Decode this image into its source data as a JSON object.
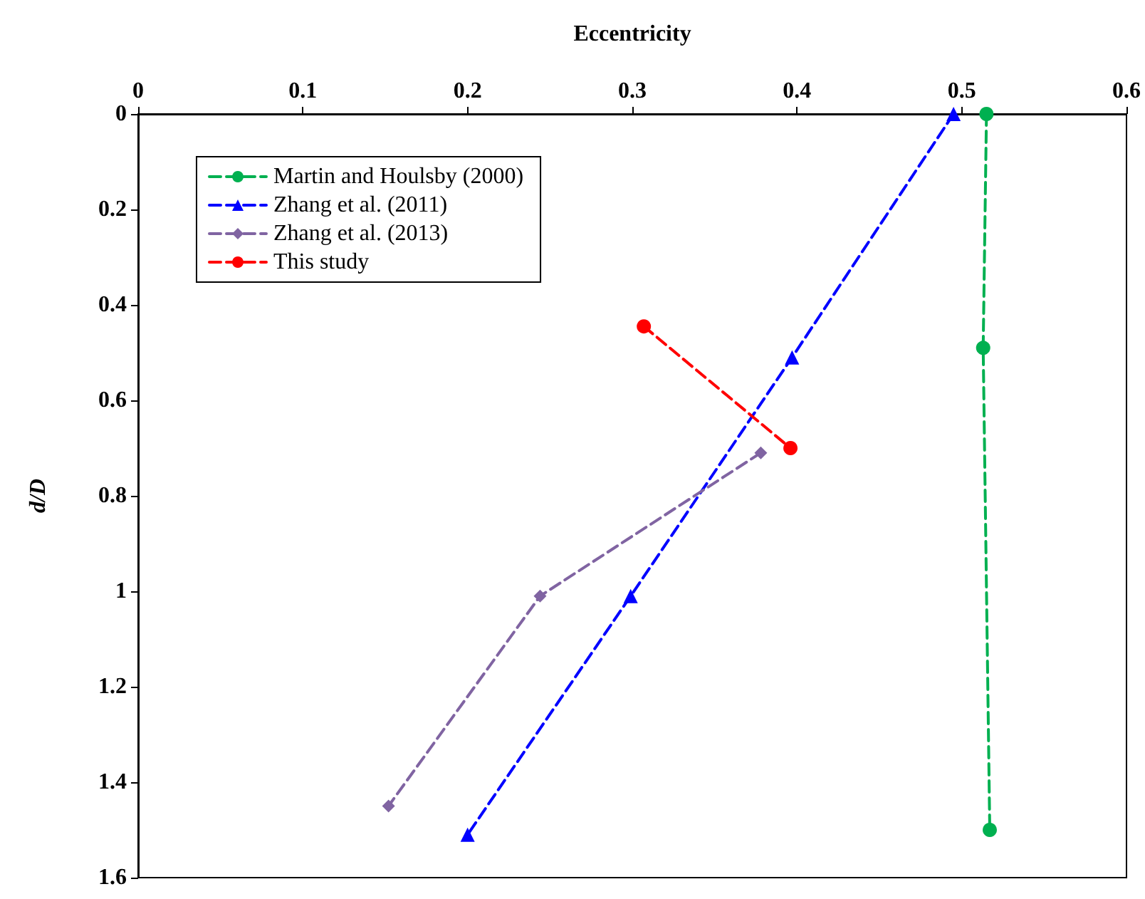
{
  "chart_data": {
    "type": "line",
    "xlabel": "Eccentricity",
    "ylabel": "d/D",
    "xlim": [
      0,
      0.6
    ],
    "xticks": [
      0,
      0.1,
      0.2,
      0.3,
      0.4,
      0.5,
      0.6
    ],
    "ylim": [
      1.6,
      0
    ],
    "yticks": [
      0,
      0.2,
      0.4,
      0.6,
      0.8,
      1,
      1.2,
      1.4,
      1.6
    ],
    "grid": false,
    "legend": "top left",
    "line_style": "dashed",
    "series": [
      {
        "name": "Martin and Houlsby (2000)",
        "color": "#00b050",
        "marker": "circle",
        "x": [
          0.515,
          0.513,
          0.517
        ],
        "values": [
          0,
          0.49,
          1.5
        ]
      },
      {
        "name": "Zhang et al. (2011)",
        "color": "#0000ff",
        "marker": "triangle",
        "x": [
          0.495,
          0.397,
          0.299,
          0.2
        ],
        "values": [
          0,
          0.51,
          1.01,
          1.51
        ]
      },
      {
        "name": "Zhang et al. (2013)",
        "color": "#8064a2",
        "marker": "diamond",
        "x": [
          0.378,
          0.244,
          0.152
        ],
        "values": [
          0.71,
          1.01,
          1.45
        ]
      },
      {
        "name": "This study",
        "color": "#ff0000",
        "marker": "circle",
        "x": [
          0.307,
          0.396
        ],
        "values": [
          0.445,
          0.7
        ]
      }
    ]
  }
}
